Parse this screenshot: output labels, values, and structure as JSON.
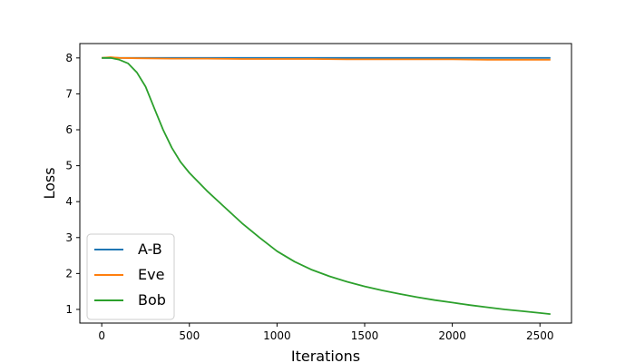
{
  "chart_data": {
    "type": "line",
    "xlabel": "Iterations",
    "ylabel": "Loss",
    "xlim": [
      -125,
      2680
    ],
    "ylim": [
      0.62,
      8.4
    ],
    "xticks": [
      0,
      500,
      1000,
      1500,
      2000,
      2500
    ],
    "yticks": [
      1,
      2,
      3,
      4,
      5,
      6,
      7,
      8
    ],
    "grid": false,
    "legend_position": "lower-left",
    "series": [
      {
        "name": "A-B",
        "color": "#1f77b4",
        "x": [
          0,
          2560
        ],
        "y": [
          8.0,
          8.0
        ]
      },
      {
        "name": "Eve",
        "color": "#ff7f0e",
        "x": [
          0,
          50,
          100,
          200,
          400,
          600,
          800,
          1000,
          1200,
          1400,
          1600,
          1800,
          2000,
          2200,
          2400,
          2560
        ],
        "y": [
          8.0,
          8.02,
          8.0,
          7.99,
          7.98,
          7.98,
          7.97,
          7.97,
          7.97,
          7.96,
          7.96,
          7.96,
          7.96,
          7.95,
          7.95,
          7.95
        ]
      },
      {
        "name": "Bob",
        "color": "#2ca02c",
        "x": [
          0,
          50,
          100,
          150,
          200,
          250,
          300,
          350,
          400,
          450,
          500,
          600,
          700,
          800,
          900,
          1000,
          1100,
          1200,
          1300,
          1400,
          1500,
          1600,
          1700,
          1800,
          1900,
          2000,
          2100,
          2200,
          2300,
          2400,
          2500,
          2560
        ],
        "y": [
          8.0,
          8.0,
          7.95,
          7.85,
          7.6,
          7.2,
          6.6,
          6.0,
          5.5,
          5.1,
          4.8,
          4.3,
          3.85,
          3.4,
          3.0,
          2.62,
          2.33,
          2.1,
          1.92,
          1.77,
          1.64,
          1.53,
          1.43,
          1.34,
          1.26,
          1.19,
          1.12,
          1.06,
          1.0,
          0.95,
          0.9,
          0.87
        ]
      }
    ]
  }
}
